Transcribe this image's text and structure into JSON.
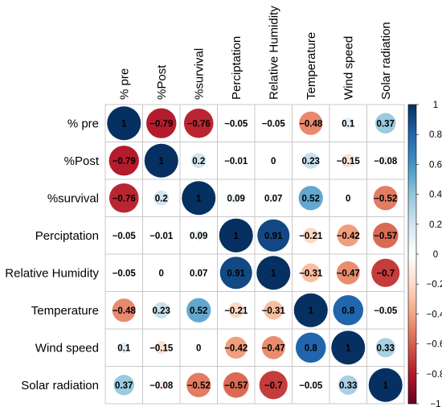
{
  "chart_data": {
    "type": "heatmap",
    "title": "",
    "variables": [
      "% pre",
      "%Post",
      "%survival",
      "Perciptation",
      "Relative Humidity",
      "Temperature",
      "Wind speed",
      "Solar radiation"
    ],
    "row_labels": [
      "% pre",
      "%Post",
      "%survival",
      "Perciptation",
      "Relative Humidity",
      "Temperature",
      "Wind speed",
      "Solar radiation"
    ],
    "col_labels": [
      "% pre",
      "%Post",
      "%survival",
      "Perciptation",
      "Relative Humidity",
      "Temperature",
      "Wind speed",
      "Solar radiation"
    ],
    "matrix": [
      [
        1,
        -0.79,
        -0.76,
        -0.05,
        -0.05,
        -0.48,
        0.1,
        0.37
      ],
      [
        -0.79,
        1,
        0.2,
        -0.01,
        0,
        0.23,
        -0.15,
        -0.08
      ],
      [
        -0.76,
        0.2,
        1,
        0.09,
        0.07,
        0.52,
        0,
        -0.52
      ],
      [
        -0.05,
        -0.01,
        0.09,
        1,
        0.91,
        -0.21,
        -0.42,
        -0.57
      ],
      [
        -0.05,
        0,
        0.07,
        0.91,
        1,
        -0.31,
        -0.47,
        -0.7
      ],
      [
        -0.48,
        0.23,
        0.52,
        -0.21,
        -0.31,
        1,
        0.8,
        -0.05
      ],
      [
        0.1,
        -0.15,
        0,
        -0.42,
        -0.47,
        0.8,
        1,
        0.33
      ],
      [
        0.37,
        -0.08,
        -0.52,
        -0.57,
        -0.7,
        -0.05,
        0.33,
        1
      ]
    ],
    "value_labels": [
      [
        "1",
        "−0.79",
        "−0.76",
        "−0.05",
        "−0.05",
        "−0.48",
        "0.1",
        "0.37"
      ],
      [
        "−0.79",
        "1",
        "0.2",
        "−0.01",
        "0",
        "0.23",
        "−0.15",
        "−0.08"
      ],
      [
        "−0.76",
        "0.2",
        "1",
        "0.09",
        "0.07",
        "0.52",
        "0",
        "−0.52"
      ],
      [
        "−0.05",
        "−0.01",
        "0.09",
        "1",
        "0.91",
        "−0.21",
        "−0.42",
        "−0.57"
      ],
      [
        "−0.05",
        "0",
        "0.07",
        "0.91",
        "1",
        "−0.31",
        "−0.47",
        "−0.7"
      ],
      [
        "−0.48",
        "0.23",
        "0.52",
        "−0.21",
        "−0.31",
        "1",
        "0.8",
        "−0.05"
      ],
      [
        "0.1",
        "−0.15",
        "0",
        "−0.42",
        "−0.47",
        "0.8",
        "1",
        "0.33"
      ],
      [
        "0.37",
        "−0.08",
        "−0.52",
        "−0.57",
        "−0.7",
        "−0.05",
        "0.33",
        "1"
      ]
    ],
    "encoding": "circle size and color represent correlation value",
    "color_scale": {
      "range": [
        -1,
        1
      ],
      "low_color": "#67001f",
      "mid_color": "#ffffff",
      "high_color": "#053061",
      "ticks": [
        1,
        0.8,
        0.6,
        0.4,
        0.2,
        0,
        -0.2,
        -0.4,
        -0.6,
        -0.8,
        -1
      ],
      "tick_labels": [
        "1",
        "0.8",
        "0.6",
        "0.4",
        "0.2",
        "0",
        "−0.2",
        "−0.4",
        "−0.6",
        "−0.8",
        "−1"
      ]
    },
    "grid": true,
    "legend": "right"
  }
}
